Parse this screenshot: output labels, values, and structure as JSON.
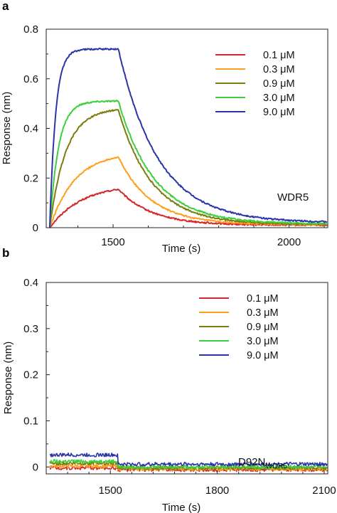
{
  "chart_data": [
    {
      "panel": "a",
      "type": "line",
      "title": "",
      "xlabel": "Time (s)",
      "ylabel": "Response (nm)",
      "xlim": [
        1310,
        2110
      ],
      "ylim": [
        0,
        0.8
      ],
      "xticks": [
        1500,
        2000
      ],
      "xtick_labels": [
        "1500",
        "2000"
      ],
      "yticks": [
        0,
        0.2,
        0.4,
        0.6,
        0.8
      ],
      "ytick_labels": [
        "0",
        "0.2",
        "0.4",
        "0.6",
        "0.8"
      ],
      "annotation": {
        "text": "WDR5",
        "sub": ""
      },
      "legend_position": "top-right",
      "grid": false,
      "association_start": 1320,
      "dissociation_start": 1515,
      "series": [
        {
          "name": "0.1 μM",
          "color": "#d62728",
          "association_plateau": 0.18,
          "association_rate": 0.011,
          "peak": 0.155,
          "dissociation_rate": 0.0107,
          "baseline": 0.01
        },
        {
          "name": "0.3 μM",
          "color": "#ff9f1c",
          "association_plateau": 0.3,
          "association_rate": 0.014,
          "peak": 0.285,
          "dissociation_rate": 0.0108,
          "baseline": 0.012
        },
        {
          "name": "0.9 μM",
          "color": "#7b7d10",
          "association_plateau": 0.48,
          "association_rate": 0.022,
          "peak": 0.475,
          "dissociation_rate": 0.0105,
          "baseline": 0.013
        },
        {
          "name": "3.0 μM",
          "color": "#3ecf3e",
          "association_plateau": 0.51,
          "association_rate": 0.04,
          "peak": 0.51,
          "dissociation_rate": 0.0098,
          "baseline": 0.015
        },
        {
          "name": "9.0 μM",
          "color": "#2b35a8",
          "association_plateau": 0.72,
          "association_rate": 0.06,
          "peak": 0.72,
          "dissociation_rate": 0.0088,
          "baseline": 0.02
        }
      ]
    },
    {
      "panel": "b",
      "type": "line",
      "title": "",
      "xlabel": "Time (s)",
      "ylabel": "Response (nm)",
      "xlim": [
        1320,
        2110
      ],
      "ylim": [
        -0.015,
        0.4
      ],
      "xticks": [
        1500,
        1800,
        2100
      ],
      "xtick_labels": [
        "1500",
        "1800",
        "2100"
      ],
      "yticks": [
        0,
        0.1,
        0.2,
        0.3,
        0.4
      ],
      "ytick_labels": [
        "0",
        "0.1",
        "0.2",
        "0.3",
        "0.4"
      ],
      "annotation": {
        "text": "D92N",
        "sub": "WDR5"
      },
      "legend_position": "top-right",
      "grid": false,
      "association_start": 1330,
      "dissociation_start": 1520,
      "series": [
        {
          "name": "0.1 μM",
          "color": "#d62728",
          "assoc_level": -0.002,
          "dissoc_level": -0.006
        },
        {
          "name": "0.3 μM",
          "color": "#ff9f1c",
          "assoc_level": 0.002,
          "dissoc_level": -0.004
        },
        {
          "name": "0.9 μM",
          "color": "#7b7d10",
          "assoc_level": 0.008,
          "dissoc_level": -0.002
        },
        {
          "name": "3.0 μM",
          "color": "#3ecf3e",
          "assoc_level": 0.012,
          "dissoc_level": 0.0
        },
        {
          "name": "9.0 μM",
          "color": "#2b35a8",
          "assoc_level": 0.026,
          "dissoc_level": 0.006
        }
      ]
    }
  ]
}
